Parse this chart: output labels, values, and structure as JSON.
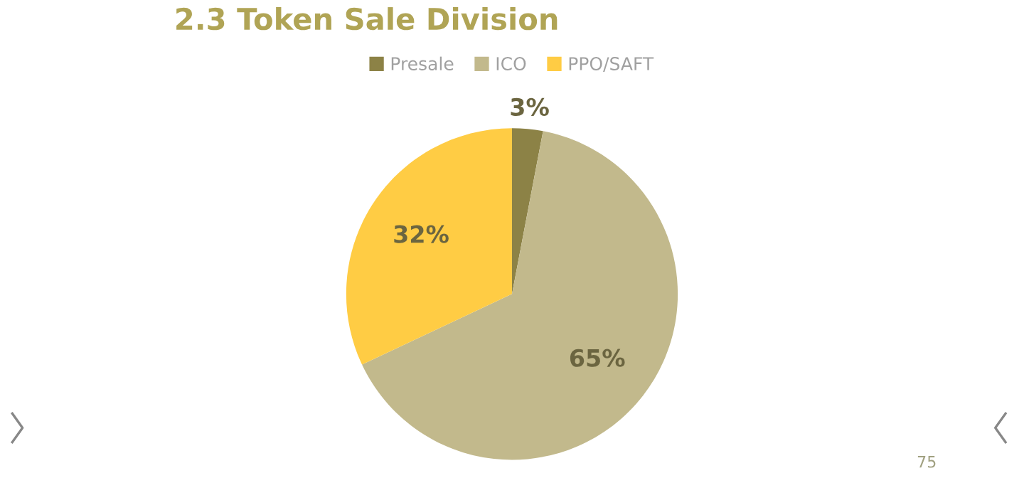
{
  "chart_data": {
    "type": "pie",
    "title": "2.3 Token Sale Division",
    "categories": [
      "Presale",
      "ICO",
      "PPO/SAFT"
    ],
    "values": [
      3,
      65,
      32
    ],
    "colors": [
      "#8c8246",
      "#c2b98c",
      "#ffcc44"
    ],
    "value_labels": [
      "3%",
      "65%",
      "32%"
    ],
    "legend": "top",
    "annotations": [
      "75"
    ]
  }
}
